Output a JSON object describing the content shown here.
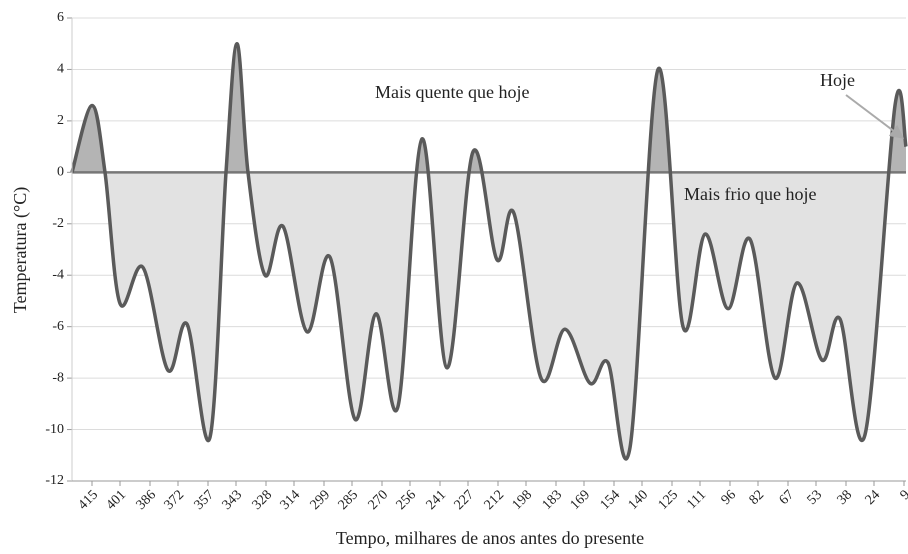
{
  "chart_data": {
    "type": "line",
    "x_label": "Tempo, milhares de anos antes do presente",
    "y_label": "Temperatura (°C)",
    "annotations": [
      "Mais quente que hoje",
      "Mais frio que hoje",
      "Hoje"
    ],
    "x": [
      425,
      415,
      408.5,
      401,
      389.5,
      377,
      367.5,
      356,
      348,
      342.5,
      337,
      328.5,
      319.5,
      307.5,
      296,
      283.5,
      273,
      262,
      250,
      237.5,
      224.5,
      212.5,
      204,
      190.5,
      178.5,
      166,
      157,
      146,
      132,
      119.5,
      108.5,
      97,
      86,
      73.5,
      62.5,
      50,
      41,
      28.5,
      13.5,
      8
    ],
    "values": [
      0,
      2.6,
      0,
      -5.1,
      -3.7,
      -7.7,
      -5.9,
      -10.3,
      0,
      5.0,
      0,
      -4.0,
      -2.1,
      -6.2,
      -3.3,
      -9.6,
      -5.5,
      -9.1,
      1.3,
      -7.6,
      0.8,
      -3.4,
      -1.6,
      -8.0,
      -6.1,
      -8.2,
      -7.4,
      -10.7,
      4.0,
      -6.0,
      -2.4,
      -5.3,
      -2.6,
      -8.0,
      -4.3,
      -7.3,
      -5.7,
      -10.2,
      2.6,
      1.0
    ],
    "color": "#5a5a5a",
    "warm_color": "#b4b4b4",
    "cold_color": "#e2e2e2",
    "xlim": [
      425,
      8
    ],
    "xticks": [
      415,
      401,
      386,
      372,
      357,
      343,
      328,
      314,
      299,
      285,
      270,
      256,
      241,
      227,
      212,
      198,
      183,
      169,
      154,
      140,
      125,
      111,
      96,
      82,
      67,
      53,
      38,
      24,
      9
    ],
    "ylim": [
      -12,
      6
    ],
    "yticks": [
      -12,
      -10,
      -8,
      -6,
      -4,
      -2,
      0,
      2,
      4,
      6
    ],
    "grid": true
  }
}
